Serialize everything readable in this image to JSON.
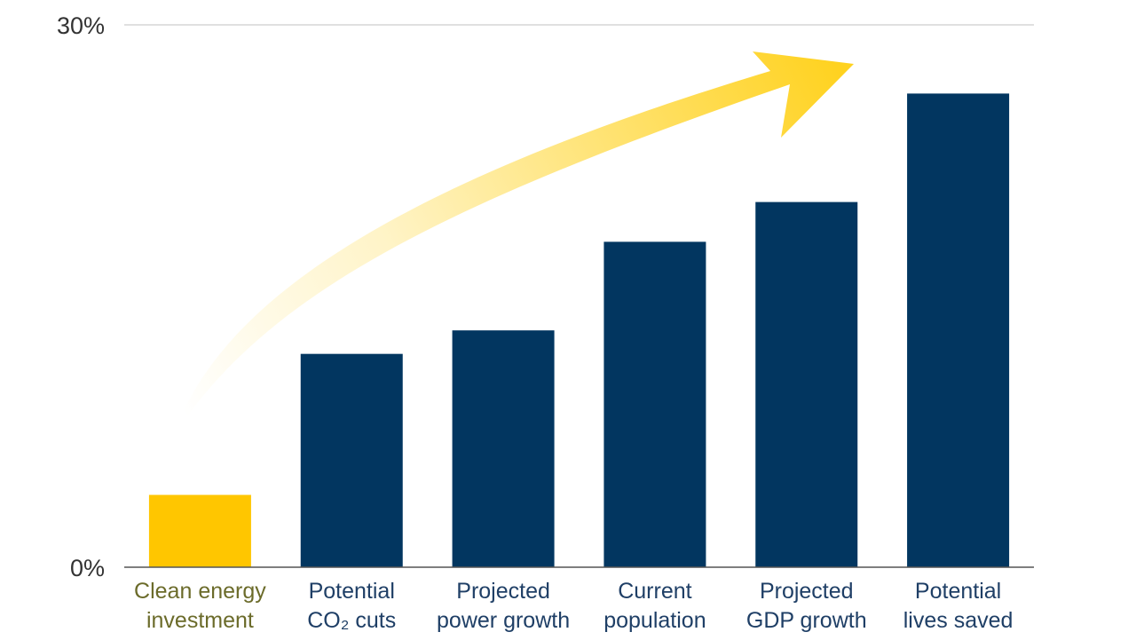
{
  "chart_data": {
    "type": "bar",
    "ylim": [
      0,
      30
    ],
    "yticks": [
      {
        "value": 0,
        "label": "0%"
      },
      {
        "value": 30,
        "label": "30%"
      }
    ],
    "categories": [
      [
        "Clean energy",
        "investment"
      ],
      [
        "Potential",
        "CO₂ cuts"
      ],
      [
        "Projected",
        "power growth"
      ],
      [
        "Current",
        "population"
      ],
      [
        "Projected",
        "GDP growth"
      ],
      [
        "Potential",
        "lives saved"
      ]
    ],
    "values": [
      4.0,
      11.8,
      13.1,
      18.0,
      20.2,
      26.2
    ],
    "highlight_index": 0,
    "arrow": true
  },
  "colors": {
    "highlight_bar": "#FFC600",
    "highlight_label": "#6B6B2A",
    "bar": "#023660",
    "label": "#1F3F66",
    "gridline": "#D6D6D6",
    "axis": "#555555",
    "arrow": "#FFD21F"
  }
}
